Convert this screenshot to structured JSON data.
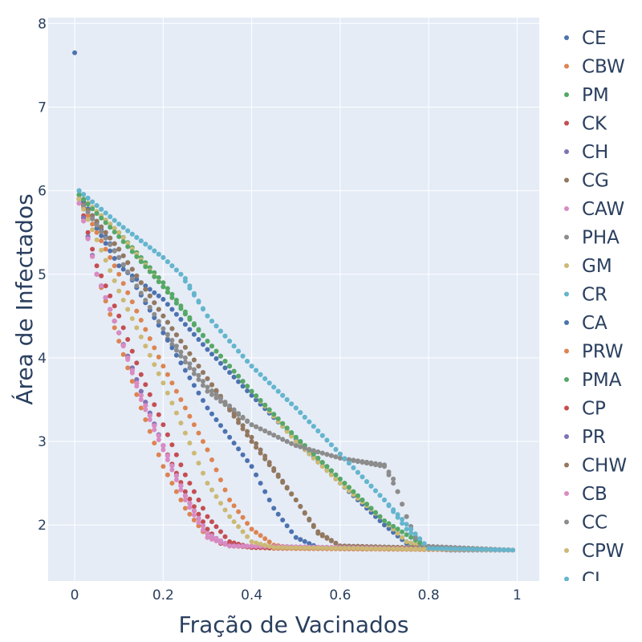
{
  "chart_data": {
    "type": "scatter",
    "xlabel": "Fração de Vacinados",
    "ylabel": "Área de Infectados",
    "xlim": [
      -0.06,
      1.05
    ],
    "ylim": [
      1.33,
      8.07
    ],
    "xticks": [
      "0",
      "0.2",
      "0.4",
      "0.6",
      "0.8",
      "1"
    ],
    "yticks": [
      "2",
      "3",
      "4",
      "5",
      "6",
      "7",
      "8"
    ],
    "grid": true,
    "legend_position": "right",
    "background": "#e5ecf6",
    "series": [
      {
        "name": "CE",
        "color": "#4c72b0",
        "points": [
          [
            0.0,
            7.65
          ],
          [
            0.01,
            6.0
          ],
          [
            0.05,
            5.55
          ],
          [
            0.1,
            5.1
          ],
          [
            0.2,
            4.7
          ],
          [
            0.3,
            4.1
          ],
          [
            0.4,
            3.55
          ],
          [
            0.5,
            3.02
          ],
          [
            0.6,
            2.5
          ],
          [
            0.7,
            2.0
          ],
          [
            0.75,
            1.78
          ],
          [
            0.78,
            1.72
          ],
          [
            0.85,
            1.7
          ],
          [
            0.99,
            1.7
          ]
        ]
      },
      {
        "name": "CBW",
        "color": "#dd8452",
        "points": [
          [
            0.01,
            5.9
          ],
          [
            0.05,
            5.0
          ],
          [
            0.1,
            4.2
          ],
          [
            0.15,
            3.4
          ],
          [
            0.2,
            2.7
          ],
          [
            0.25,
            2.2
          ],
          [
            0.3,
            1.85
          ],
          [
            0.35,
            1.75
          ],
          [
            0.45,
            1.72
          ],
          [
            0.99,
            1.7
          ]
        ]
      },
      {
        "name": "PM",
        "color": "#55a868",
        "points": [
          [
            0.01,
            5.95
          ],
          [
            0.1,
            5.5
          ],
          [
            0.2,
            4.9
          ],
          [
            0.3,
            4.2
          ],
          [
            0.4,
            3.6
          ],
          [
            0.5,
            3.05
          ],
          [
            0.6,
            2.55
          ],
          [
            0.7,
            2.05
          ],
          [
            0.75,
            1.8
          ],
          [
            0.8,
            1.72
          ],
          [
            0.99,
            1.7
          ]
        ]
      },
      {
        "name": "CK",
        "color": "#c44e52",
        "points": [
          [
            0.01,
            5.85
          ],
          [
            0.05,
            5.0
          ],
          [
            0.1,
            4.3
          ],
          [
            0.15,
            3.55
          ],
          [
            0.2,
            2.95
          ],
          [
            0.25,
            2.4
          ],
          [
            0.3,
            1.95
          ],
          [
            0.33,
            1.78
          ],
          [
            0.4,
            1.73
          ],
          [
            0.99,
            1.7
          ]
        ]
      },
      {
        "name": "CH",
        "color": "#8172b3",
        "points": [
          [
            0.01,
            5.9
          ],
          [
            0.05,
            5.0
          ],
          [
            0.1,
            4.3
          ],
          [
            0.15,
            3.6
          ],
          [
            0.2,
            2.95
          ],
          [
            0.25,
            2.35
          ],
          [
            0.3,
            1.9
          ],
          [
            0.35,
            1.75
          ],
          [
            0.99,
            1.7
          ]
        ]
      },
      {
        "name": "CG",
        "color": "#937860",
        "points": [
          [
            0.01,
            5.9
          ],
          [
            0.1,
            5.3
          ],
          [
            0.2,
            4.5
          ],
          [
            0.3,
            3.75
          ],
          [
            0.4,
            3.0
          ],
          [
            0.5,
            2.3
          ],
          [
            0.55,
            1.9
          ],
          [
            0.6,
            1.75
          ],
          [
            0.99,
            1.7
          ]
        ]
      },
      {
        "name": "CAW",
        "color": "#da8bc3",
        "points": [
          [
            0.01,
            5.9
          ],
          [
            0.05,
            5.0
          ],
          [
            0.1,
            4.3
          ],
          [
            0.15,
            3.5
          ],
          [
            0.2,
            2.9
          ],
          [
            0.25,
            2.3
          ],
          [
            0.3,
            1.85
          ],
          [
            0.35,
            1.75
          ],
          [
            0.99,
            1.7
          ]
        ]
      },
      {
        "name": "PHA",
        "color": "#8c8c8c",
        "points": [
          [
            0.01,
            5.9
          ],
          [
            0.1,
            5.2
          ],
          [
            0.2,
            4.3
          ],
          [
            0.3,
            3.6
          ],
          [
            0.4,
            3.2
          ],
          [
            0.5,
            2.95
          ],
          [
            0.6,
            2.8
          ],
          [
            0.7,
            2.72
          ],
          [
            0.72,
            2.55
          ],
          [
            0.75,
            2.1
          ],
          [
            0.78,
            1.75
          ],
          [
            0.99,
            1.7
          ]
        ]
      },
      {
        "name": "GM",
        "color": "#ccb974",
        "points": [
          [
            0.01,
            5.95
          ],
          [
            0.1,
            5.5
          ],
          [
            0.2,
            4.85
          ],
          [
            0.3,
            4.2
          ],
          [
            0.4,
            3.6
          ],
          [
            0.5,
            3.0
          ],
          [
            0.6,
            2.5
          ],
          [
            0.7,
            2.05
          ],
          [
            0.75,
            1.8
          ],
          [
            0.8,
            1.72
          ],
          [
            0.99,
            1.7
          ]
        ]
      },
      {
        "name": "CR",
        "color": "#64b5cd",
        "points": [
          [
            0.01,
            6.0
          ],
          [
            0.1,
            5.6
          ],
          [
            0.2,
            5.2
          ],
          [
            0.24,
            5.0
          ],
          [
            0.3,
            4.5
          ],
          [
            0.4,
            3.9
          ],
          [
            0.5,
            3.4
          ],
          [
            0.6,
            2.85
          ],
          [
            0.7,
            2.3
          ],
          [
            0.75,
            1.95
          ],
          [
            0.8,
            1.72
          ],
          [
            0.99,
            1.7
          ]
        ]
      },
      {
        "name": "CA",
        "color": "#4c72b0",
        "points": [
          [
            0.01,
            5.95
          ],
          [
            0.1,
            5.2
          ],
          [
            0.2,
            4.3
          ],
          [
            0.3,
            3.4
          ],
          [
            0.4,
            2.7
          ],
          [
            0.45,
            2.2
          ],
          [
            0.5,
            1.85
          ],
          [
            0.55,
            1.73
          ],
          [
            0.99,
            1.7
          ]
        ]
      },
      {
        "name": "PRW",
        "color": "#dd8452",
        "points": [
          [
            0.01,
            5.9
          ],
          [
            0.1,
            5.0
          ],
          [
            0.2,
            3.9
          ],
          [
            0.3,
            2.9
          ],
          [
            0.35,
            2.3
          ],
          [
            0.4,
            1.95
          ],
          [
            0.45,
            1.76
          ],
          [
            0.5,
            1.72
          ],
          [
            0.99,
            1.7
          ]
        ]
      },
      {
        "name": "PMA",
        "color": "#55a868",
        "points": [
          [
            0.01,
            5.95
          ],
          [
            0.1,
            5.45
          ],
          [
            0.2,
            4.85
          ],
          [
            0.3,
            4.2
          ],
          [
            0.4,
            3.6
          ],
          [
            0.5,
            3.05
          ],
          [
            0.6,
            2.55
          ],
          [
            0.7,
            2.05
          ],
          [
            0.8,
            1.72
          ],
          [
            0.99,
            1.7
          ]
        ]
      },
      {
        "name": "CP",
        "color": "#c44e52",
        "points": [
          [
            0.01,
            5.9
          ],
          [
            0.05,
            5.1
          ],
          [
            0.1,
            4.5
          ],
          [
            0.15,
            3.8
          ],
          [
            0.2,
            3.2
          ],
          [
            0.25,
            2.6
          ],
          [
            0.3,
            2.1
          ],
          [
            0.35,
            1.8
          ],
          [
            0.4,
            1.73
          ],
          [
            0.99,
            1.7
          ]
        ]
      },
      {
        "name": "PR",
        "color": "#8172b3",
        "points": [
          [
            0.01,
            5.9
          ],
          [
            0.05,
            5.0
          ],
          [
            0.1,
            4.3
          ],
          [
            0.15,
            3.6
          ],
          [
            0.2,
            2.95
          ],
          [
            0.25,
            2.35
          ],
          [
            0.3,
            1.9
          ],
          [
            0.35,
            1.75
          ],
          [
            0.99,
            1.7
          ]
        ]
      },
      {
        "name": "CHW",
        "color": "#937860",
        "points": [
          [
            0.01,
            5.9
          ],
          [
            0.1,
            5.3
          ],
          [
            0.2,
            4.5
          ],
          [
            0.3,
            3.75
          ],
          [
            0.4,
            3.05
          ],
          [
            0.5,
            2.3
          ],
          [
            0.55,
            1.92
          ],
          [
            0.6,
            1.75
          ],
          [
            0.99,
            1.7
          ]
        ]
      },
      {
        "name": "CB",
        "color": "#da8bc3",
        "points": [
          [
            0.01,
            5.85
          ],
          [
            0.05,
            5.0
          ],
          [
            0.1,
            4.3
          ],
          [
            0.15,
            3.55
          ],
          [
            0.2,
            2.95
          ],
          [
            0.25,
            2.35
          ],
          [
            0.3,
            1.9
          ],
          [
            0.35,
            1.75
          ],
          [
            0.99,
            1.7
          ]
        ]
      },
      {
        "name": "CC",
        "color": "#8c8c8c",
        "points": [
          [
            0.01,
            5.9
          ],
          [
            0.1,
            5.2
          ],
          [
            0.2,
            4.35
          ],
          [
            0.3,
            3.65
          ],
          [
            0.4,
            3.2
          ],
          [
            0.5,
            2.95
          ],
          [
            0.6,
            2.8
          ],
          [
            0.7,
            2.7
          ],
          [
            0.73,
            2.4
          ],
          [
            0.76,
            1.95
          ],
          [
            0.78,
            1.74
          ],
          [
            0.99,
            1.7
          ]
        ]
      },
      {
        "name": "CPW",
        "color": "#ccb974",
        "points": [
          [
            0.01,
            5.9
          ],
          [
            0.1,
            4.8
          ],
          [
            0.2,
            3.7
          ],
          [
            0.25,
            3.1
          ],
          [
            0.3,
            2.5
          ],
          [
            0.35,
            2.1
          ],
          [
            0.4,
            1.8
          ],
          [
            0.45,
            1.73
          ],
          [
            0.99,
            1.7
          ]
        ]
      },
      {
        "name": "CL",
        "color": "#64b5cd",
        "points": [
          [
            0.01,
            6.0
          ],
          [
            0.1,
            5.6
          ],
          [
            0.2,
            5.2
          ],
          [
            0.25,
            4.95
          ],
          [
            0.3,
            4.5
          ],
          [
            0.4,
            3.9
          ],
          [
            0.5,
            3.4
          ],
          [
            0.6,
            2.85
          ],
          [
            0.7,
            2.3
          ],
          [
            0.8,
            1.72
          ],
          [
            0.99,
            1.7
          ]
        ]
      }
    ]
  }
}
